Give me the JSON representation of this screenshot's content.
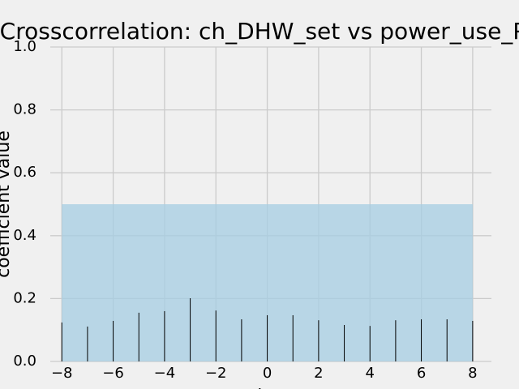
{
  "chart_data": {
    "type": "stem",
    "title": "Crosscorrelation: ch_DHW_set vs power_use_PV",
    "xlabel": "lag",
    "ylabel": "coefficient value",
    "x": [
      -8,
      -7,
      -6,
      -5,
      -4,
      -3,
      -2,
      -1,
      0,
      1,
      2,
      3,
      4,
      5,
      6,
      7,
      8
    ],
    "values": [
      0.124,
      0.111,
      0.129,
      0.155,
      0.16,
      0.201,
      0.162,
      0.134,
      0.147,
      0.147,
      0.131,
      0.116,
      0.113,
      0.131,
      0.134,
      0.134,
      0.129
    ],
    "color": "#000000",
    "shaded_region": {
      "xmin": -8,
      "xmax": 8,
      "ymin": 0,
      "ymax": 0.5,
      "color": "#a6cee3"
    },
    "xlim": [
      -8.45,
      8.73
    ],
    "ylim": [
      0,
      1
    ],
    "xticks": [
      {
        "value": -8,
        "label": "−8"
      },
      {
        "value": -6,
        "label": "−6"
      },
      {
        "value": -4,
        "label": "−4"
      },
      {
        "value": -2,
        "label": "−2"
      },
      0,
      2,
      4,
      6,
      8
    ],
    "yticks": [
      {
        "value": 0,
        "label": "0.0"
      },
      0.2,
      0.4,
      0.6,
      0.8,
      {
        "value": 1,
        "label": "1.0"
      }
    ],
    "grid": true
  }
}
